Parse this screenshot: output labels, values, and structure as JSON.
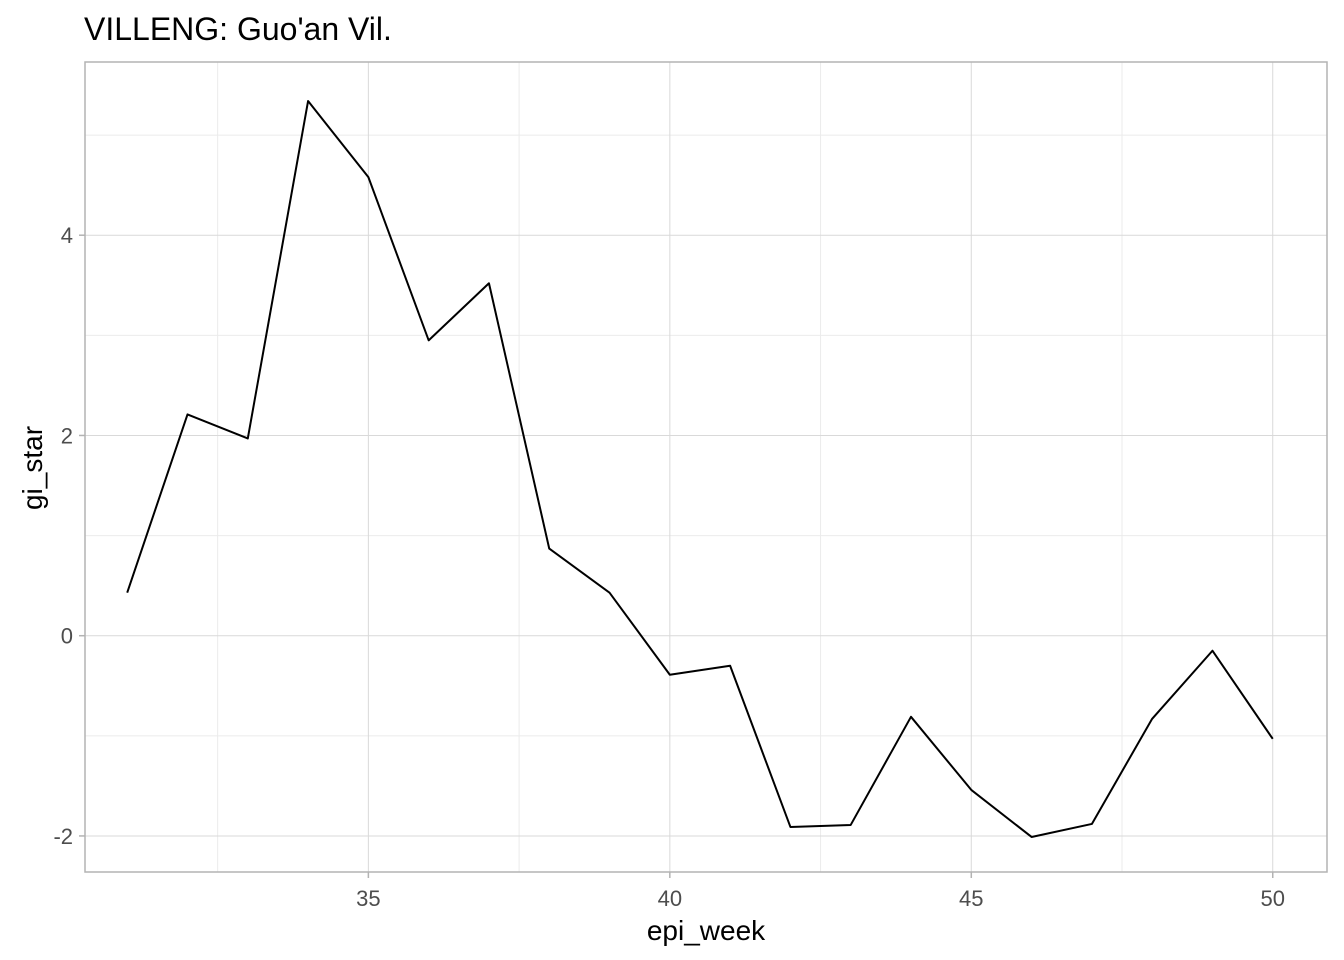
{
  "chart_data": {
    "type": "line",
    "title": "VILLENG: Guo'an Vil.",
    "xlabel": "epi_week",
    "ylabel": "gi_star",
    "x": [
      31,
      32,
      33,
      34,
      35,
      36,
      37,
      38,
      39,
      40,
      41,
      42,
      43,
      44,
      45,
      46,
      47,
      48,
      49,
      50
    ],
    "series": [
      {
        "values": [
          0.43,
          2.21,
          1.97,
          5.34,
          4.58,
          2.95,
          3.52,
          0.87,
          0.43,
          -0.39,
          -0.3,
          -1.91,
          -1.89,
          -0.81,
          -1.54,
          -2.01,
          -1.88,
          -0.83,
          -0.15,
          -1.03
        ]
      }
    ],
    "xlim": [
      30.3,
      50.9
    ],
    "ylim": [
      -2.36,
      5.73
    ],
    "x_ticks": [
      35,
      40,
      45,
      50
    ],
    "x_tick_labels": [
      "35",
      "40",
      "45",
      "50"
    ],
    "x_minor_ticks": [
      32.5,
      37.5,
      42.5,
      47.5
    ],
    "y_ticks": [
      -2,
      0,
      2,
      4
    ],
    "y_tick_labels": [
      "-2",
      "0",
      "2",
      "4"
    ],
    "y_minor_ticks": [
      -1,
      1,
      3,
      5
    ],
    "grid": true,
    "legend": "none",
    "colors": {
      "line": "#000000",
      "grid_major": "#d9d9d9",
      "grid_minor": "#ebebeb",
      "panel_border": "#b3b3b3",
      "tick_label": "#4d4d4d"
    }
  }
}
